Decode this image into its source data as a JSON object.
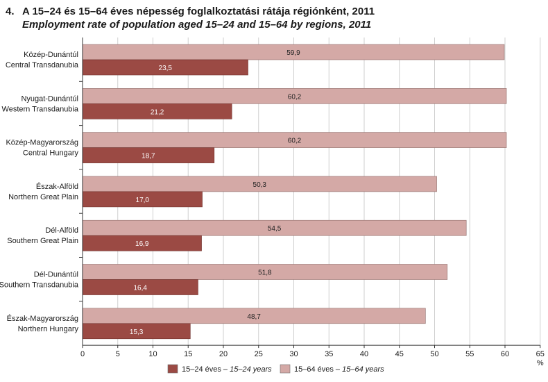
{
  "figure": {
    "number": "4.",
    "title_hu": "A 15–24 és 15–64 éves népesség foglalkoztatási rátája régiónként, 2011",
    "title_en": "Employment rate of population aged 15–24 and 15–64 by regions, 2011"
  },
  "chart_data": {
    "type": "bar",
    "orientation": "horizontal",
    "title": "A 15–24 és 15–64 éves népesség foglalkoztatási rátája régiónként, 2011",
    "subtitle": "Employment rate of population aged 15–24 and 15–64 by regions, 2011",
    "xlabel": "%",
    "xlim": [
      0,
      65
    ],
    "xticks": [
      0,
      5,
      10,
      15,
      20,
      25,
      30,
      35,
      40,
      45,
      50,
      55,
      60,
      65
    ],
    "grid": "vertical",
    "legend_position": "bottom",
    "categories": [
      {
        "hu": "Közép-Dunántúl",
        "en": "Central Transdanubia"
      },
      {
        "hu": "Nyugat-Dunántúl",
        "en": "Western Transdanubia"
      },
      {
        "hu": "Közép-Magyarország",
        "en": "Central Hungary"
      },
      {
        "hu": "Észak-Alföld",
        "en": "Northern Great Plain"
      },
      {
        "hu": "Dél-Alföld",
        "en": "Southern Great Plain"
      },
      {
        "hu": "Dél-Dunántúl",
        "en": "Southern Transdanubia"
      },
      {
        "hu": "Észak-Magyarország",
        "en": "Northern Hungary"
      }
    ],
    "series": [
      {
        "name_hu": "15–64 éves",
        "name_en": "15–64 years",
        "color": "#d4a9a6",
        "values": [
          59.9,
          60.2,
          60.2,
          50.3,
          54.5,
          51.8,
          48.7
        ],
        "labels": [
          "59,9",
          "60,2",
          "60,2",
          "50,3",
          "54,5",
          "51,8",
          "48,7"
        ]
      },
      {
        "name_hu": "15–24 éves",
        "name_en": "15–24 years",
        "color": "#9b4a44",
        "values": [
          23.5,
          21.2,
          18.7,
          17.0,
          16.9,
          16.4,
          15.3
        ],
        "labels": [
          "23,5",
          "21,2",
          "18,7",
          "17,0",
          "16,9",
          "16,4",
          "15,3"
        ]
      }
    ],
    "legend": [
      {
        "series": 1,
        "text_hu": "15–24 éves – ",
        "text_en": "15–24 years"
      },
      {
        "series": 0,
        "text_hu": "15–64 éves – ",
        "text_en": "15–64 years"
      }
    ]
  }
}
